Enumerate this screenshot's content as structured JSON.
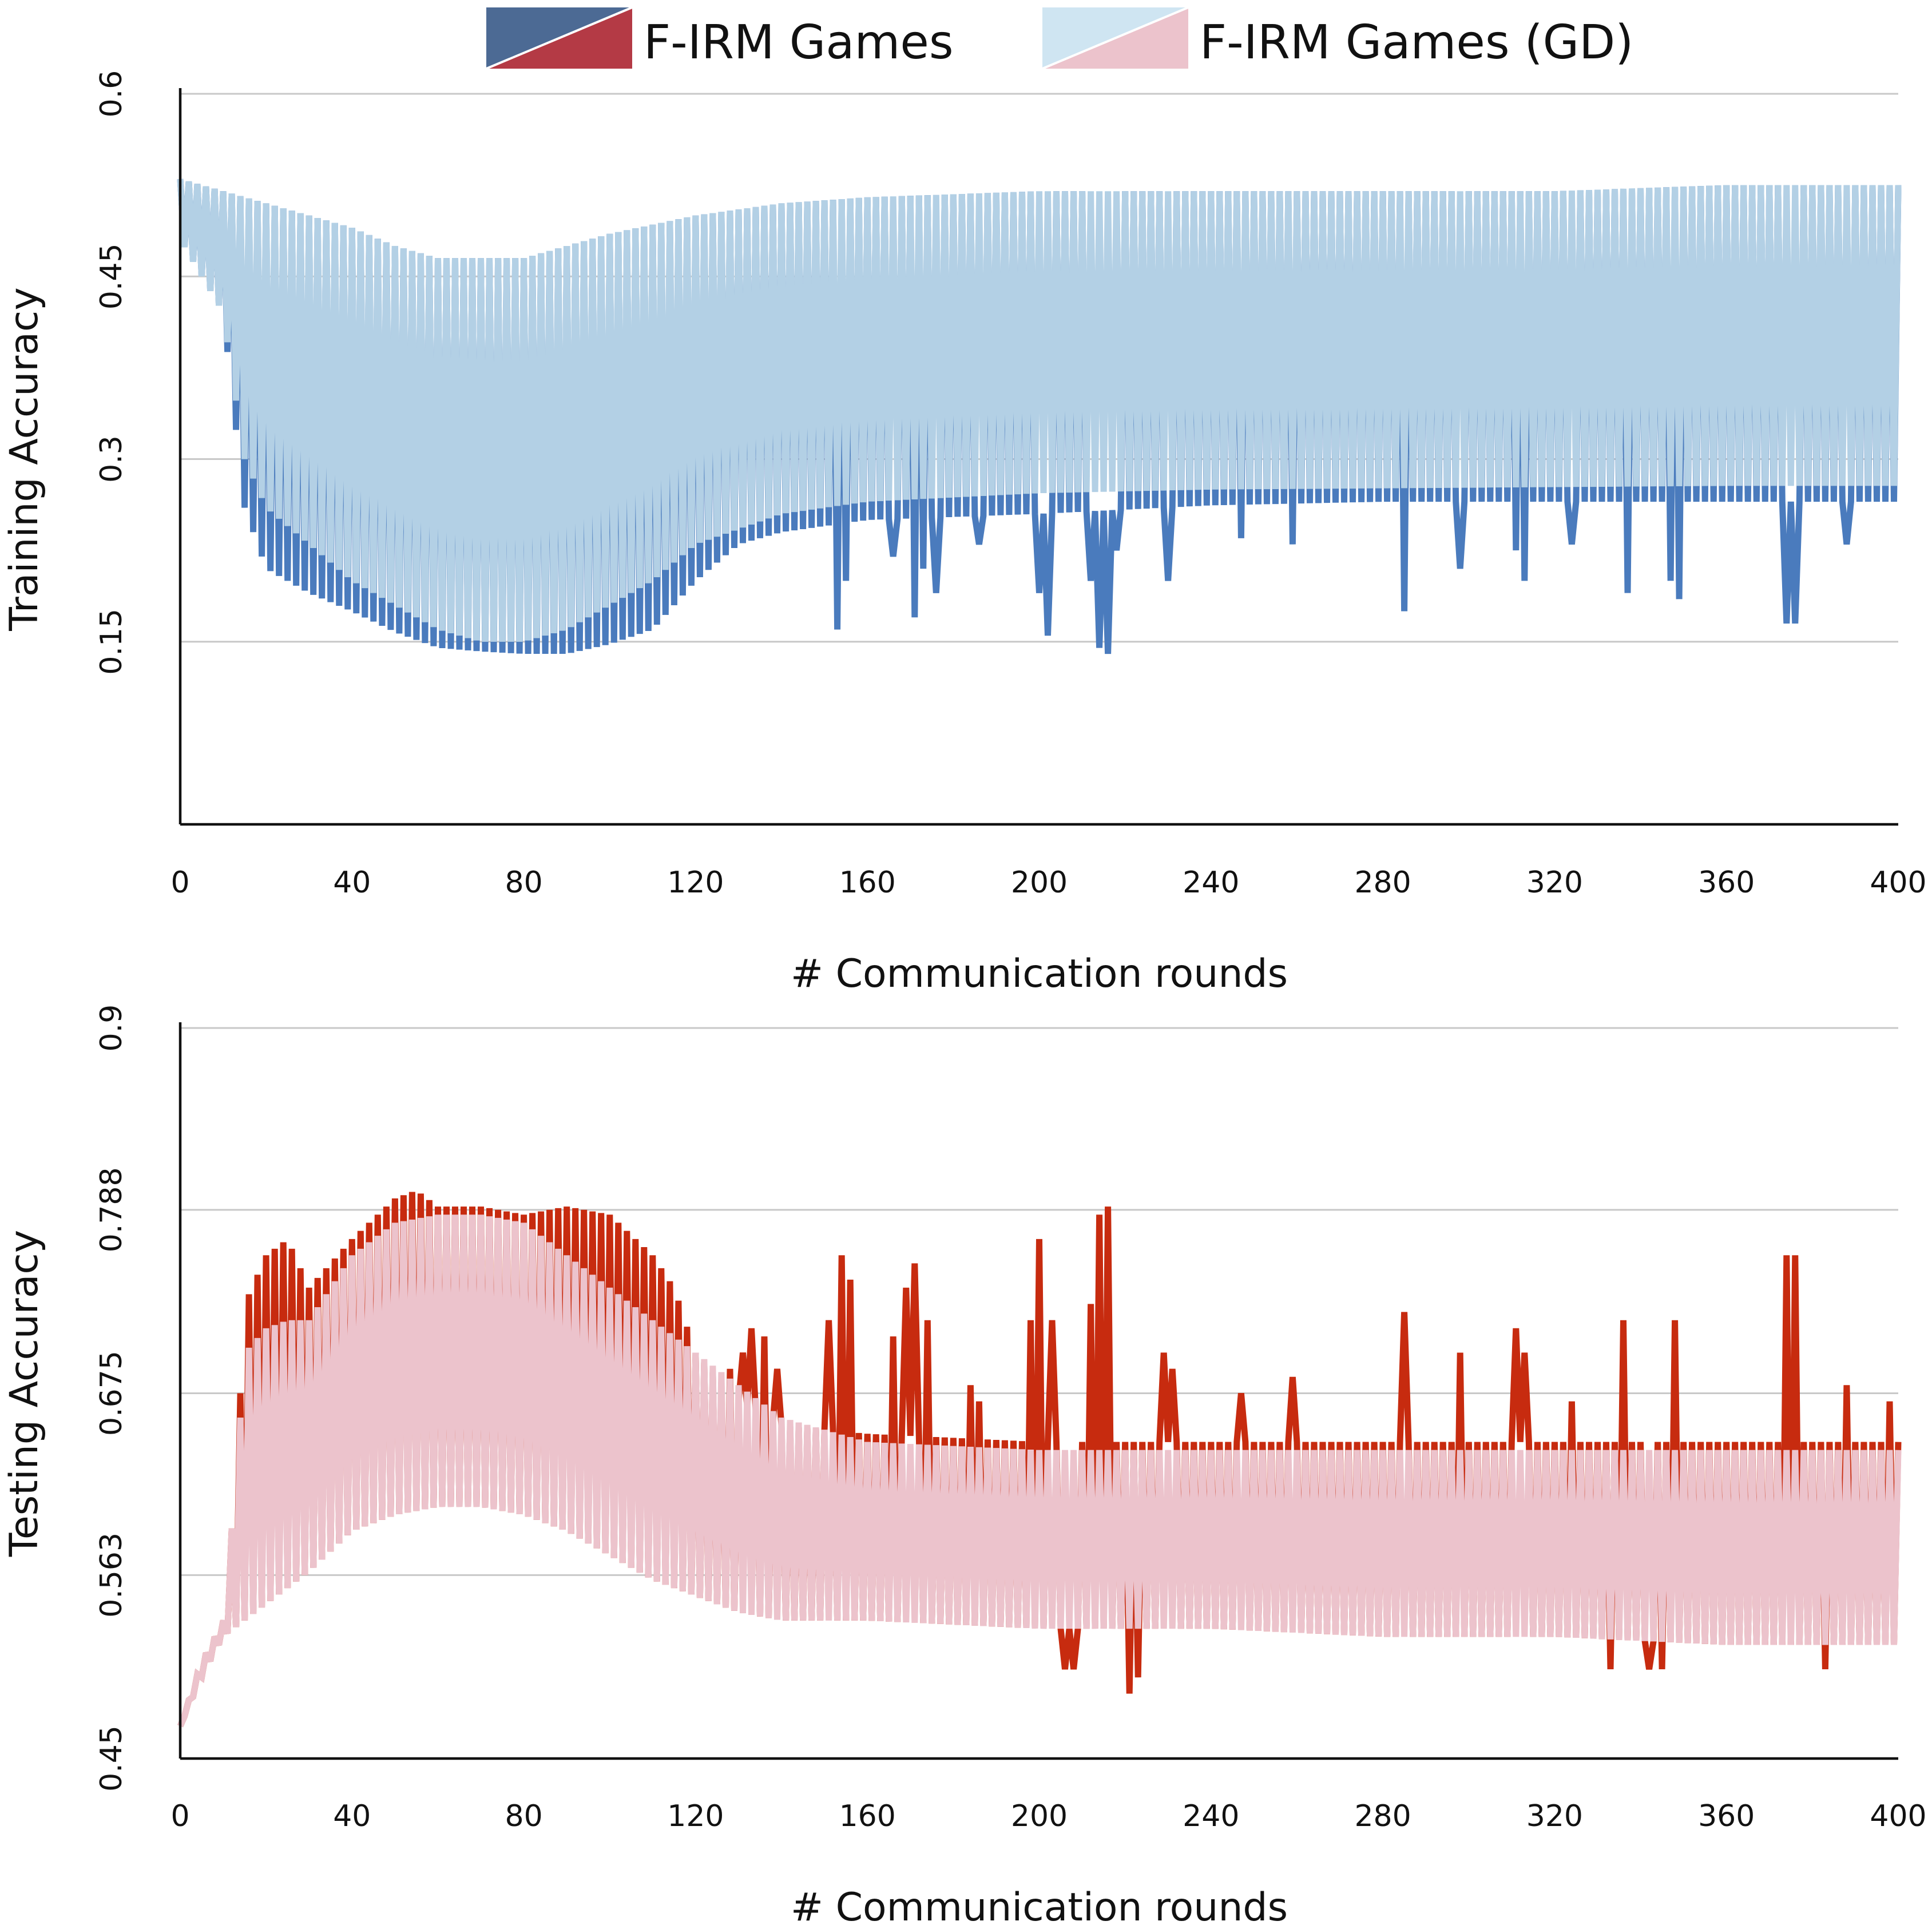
{
  "legend": {
    "items": [
      {
        "label": "F-IRM Games",
        "colors": [
          "#4c6a94",
          "#b43a45"
        ]
      },
      {
        "label": "F-IRM Games (GD)",
        "colors": [
          "#cfe5f2",
          "#ecc3cc"
        ]
      }
    ]
  },
  "colors": {
    "train_main": "#4a7bbd",
    "train_gd": "#b3d0e5",
    "test_main": "#c72b0f",
    "test_gd": "#ecc3cc",
    "grid": "#c8c8c8",
    "axis": "#111111"
  },
  "chart_data": [
    {
      "type": "line",
      "title": "",
      "xlabel": "# Communication rounds",
      "ylabel": "Training Accuracy",
      "xlim": [
        0,
        400
      ],
      "ylim": [
        0,
        0.6
      ],
      "xticks": [
        "0",
        "40",
        "80",
        "120",
        "160",
        "200",
        "240",
        "280",
        "320",
        "360",
        "400"
      ],
      "yticks": [
        "0.15",
        "0.3",
        "0.45",
        "0.6"
      ],
      "ytick_values": [
        0.15,
        0.3,
        0.45,
        0.6
      ],
      "grid": "horizontal",
      "series": [
        {
          "name": "F-IRM Games",
          "description_of_shape": "oscillates every round between an upper and lower envelope",
          "upper_envelope_x": [
            0,
            10,
            20,
            30,
            40,
            50,
            60,
            70,
            80,
            90,
            100,
            120,
            140,
            160,
            200,
            240,
            280,
            320,
            360,
            400
          ],
          "upper_envelope_y": [
            0.53,
            0.52,
            0.51,
            0.5,
            0.49,
            0.475,
            0.465,
            0.465,
            0.465,
            0.475,
            0.485,
            0.5,
            0.51,
            0.515,
            0.52,
            0.52,
            0.52,
            0.52,
            0.525,
            0.525
          ],
          "lower_envelope_x": [
            0,
            10,
            15,
            20,
            30,
            40,
            50,
            60,
            70,
            80,
            90,
            100,
            110,
            120,
            130,
            140,
            160,
            200,
            240,
            280,
            320,
            360,
            400
          ],
          "lower_envelope_y": [
            0.48,
            0.42,
            0.26,
            0.21,
            0.19,
            0.175,
            0.158,
            0.145,
            0.142,
            0.14,
            0.14,
            0.148,
            0.16,
            0.2,
            0.23,
            0.24,
            0.25,
            0.255,
            0.262,
            0.265,
            0.265,
            0.265,
            0.265
          ]
        },
        {
          "name": "F-IRM Games (GD)",
          "description_of_shape": "oscillates every round between an upper and lower envelope",
          "upper_envelope_x": [
            0,
            10,
            20,
            30,
            40,
            50,
            60,
            70,
            80,
            90,
            100,
            120,
            140,
            160,
            200,
            240,
            280,
            320,
            360,
            400
          ],
          "upper_envelope_y": [
            0.53,
            0.52,
            0.51,
            0.5,
            0.49,
            0.475,
            0.465,
            0.465,
            0.465,
            0.475,
            0.485,
            0.5,
            0.51,
            0.515,
            0.52,
            0.52,
            0.52,
            0.52,
            0.525,
            0.525
          ],
          "lower_envelope_x": [
            0,
            10,
            15,
            20,
            30,
            40,
            50,
            60,
            70,
            80,
            90,
            100,
            110,
            120,
            140,
            160,
            200,
            240,
            280,
            320,
            360,
            400
          ],
          "lower_envelope_y": [
            0.48,
            0.42,
            0.3,
            0.26,
            0.23,
            0.2,
            0.18,
            0.16,
            0.15,
            0.15,
            0.16,
            0.18,
            0.2,
            0.23,
            0.255,
            0.265,
            0.272,
            0.275,
            0.276,
            0.277,
            0.278,
            0.278
          ]
        }
      ],
      "dips": [
        {
          "x": 153,
          "y": 0.16
        },
        {
          "x": 155,
          "y": 0.2
        },
        {
          "x": 166,
          "y": 0.22
        },
        {
          "x": 171,
          "y": 0.17
        },
        {
          "x": 173,
          "y": 0.21
        },
        {
          "x": 176,
          "y": 0.19
        },
        {
          "x": 186,
          "y": 0.23
        },
        {
          "x": 200,
          "y": 0.19
        },
        {
          "x": 202,
          "y": 0.155
        },
        {
          "x": 212,
          "y": 0.2
        },
        {
          "x": 214,
          "y": 0.145
        },
        {
          "x": 216,
          "y": 0.14
        },
        {
          "x": 218,
          "y": 0.225
        },
        {
          "x": 230,
          "y": 0.2
        },
        {
          "x": 247,
          "y": 0.235
        },
        {
          "x": 259,
          "y": 0.23
        },
        {
          "x": 285,
          "y": 0.175
        },
        {
          "x": 298,
          "y": 0.21
        },
        {
          "x": 311,
          "y": 0.225
        },
        {
          "x": 313,
          "y": 0.2
        },
        {
          "x": 324,
          "y": 0.23
        },
        {
          "x": 337,
          "y": 0.19
        },
        {
          "x": 347,
          "y": 0.2
        },
        {
          "x": 349,
          "y": 0.185
        },
        {
          "x": 374,
          "y": 0.165
        },
        {
          "x": 376,
          "y": 0.165
        },
        {
          "x": 388,
          "y": 0.23
        }
      ]
    },
    {
      "type": "line",
      "title": "",
      "xlabel": "# Communication rounds",
      "ylabel": "Testing Accuracy",
      "xlim": [
        0,
        400
      ],
      "ylim": [
        0.45,
        0.9
      ],
      "xticks": [
        "0",
        "40",
        "80",
        "120",
        "160",
        "200",
        "240",
        "280",
        "320",
        "360",
        "400"
      ],
      "yticks": [
        "0.45",
        "0.563",
        "0.675",
        "0.788",
        "0.9"
      ],
      "ytick_values": [
        0.45,
        0.563,
        0.675,
        0.788,
        0.9
      ],
      "grid": "horizontal",
      "series": [
        {
          "name": "F-IRM Games",
          "upper_envelope_x": [
            0,
            5,
            10,
            13,
            15,
            20,
            25,
            30,
            40,
            50,
            55,
            60,
            70,
            80,
            90,
            100,
            110,
            115,
            120,
            130,
            140,
            160,
            200,
            240,
            280,
            320,
            360,
            400
          ],
          "upper_envelope_y": [
            0.47,
            0.51,
            0.535,
            0.62,
            0.73,
            0.76,
            0.77,
            0.74,
            0.77,
            0.795,
            0.8,
            0.79,
            0.79,
            0.785,
            0.79,
            0.785,
            0.76,
            0.74,
            0.7,
            0.67,
            0.655,
            0.65,
            0.645,
            0.645,
            0.645,
            0.645,
            0.645,
            0.645
          ],
          "lower_envelope_x": [
            0,
            5,
            10,
            15,
            20,
            30,
            40,
            50,
            60,
            70,
            80,
            90,
            100,
            110,
            120,
            130,
            140,
            160,
            200,
            240,
            280,
            320,
            360,
            400
          ],
          "lower_envelope_y": [
            0.47,
            0.5,
            0.525,
            0.535,
            0.545,
            0.565,
            0.59,
            0.6,
            0.605,
            0.605,
            0.6,
            0.59,
            0.575,
            0.56,
            0.55,
            0.54,
            0.535,
            0.535,
            0.53,
            0.53,
            0.525,
            0.525,
            0.52,
            0.52
          ]
        },
        {
          "name": "F-IRM Games (GD)",
          "upper_envelope_x": [
            0,
            5,
            10,
            13,
            15,
            20,
            25,
            30,
            40,
            50,
            60,
            70,
            80,
            90,
            100,
            110,
            120,
            130,
            140,
            160,
            200,
            240,
            280,
            320,
            360,
            400
          ],
          "upper_envelope_y": [
            0.47,
            0.51,
            0.535,
            0.62,
            0.7,
            0.715,
            0.72,
            0.72,
            0.76,
            0.78,
            0.785,
            0.785,
            0.78,
            0.76,
            0.74,
            0.72,
            0.7,
            0.68,
            0.66,
            0.645,
            0.64,
            0.64,
            0.64,
            0.64,
            0.64,
            0.64
          ],
          "lower_envelope_x": [
            0,
            5,
            10,
            15,
            20,
            30,
            40,
            50,
            60,
            70,
            80,
            90,
            100,
            110,
            120,
            130,
            140,
            160,
            200,
            240,
            280,
            320,
            360,
            400
          ],
          "lower_envelope_y": [
            0.47,
            0.5,
            0.525,
            0.535,
            0.545,
            0.565,
            0.59,
            0.6,
            0.605,
            0.605,
            0.6,
            0.59,
            0.575,
            0.56,
            0.55,
            0.54,
            0.535,
            0.535,
            0.53,
            0.53,
            0.525,
            0.525,
            0.52,
            0.52
          ]
        }
      ],
      "spikes": [
        {
          "x": 128,
          "y": 0.69
        },
        {
          "x": 131,
          "y": 0.7
        },
        {
          "x": 133,
          "y": 0.715
        },
        {
          "x": 136,
          "y": 0.71
        },
        {
          "x": 139,
          "y": 0.69
        },
        {
          "x": 151,
          "y": 0.72
        },
        {
          "x": 154,
          "y": 0.76
        },
        {
          "x": 156,
          "y": 0.745
        },
        {
          "x": 166,
          "y": 0.71
        },
        {
          "x": 169,
          "y": 0.74
        },
        {
          "x": 171,
          "y": 0.755
        },
        {
          "x": 174,
          "y": 0.72
        },
        {
          "x": 184,
          "y": 0.68
        },
        {
          "x": 186,
          "y": 0.67
        },
        {
          "x": 198,
          "y": 0.72
        },
        {
          "x": 200,
          "y": 0.77
        },
        {
          "x": 203,
          "y": 0.72
        },
        {
          "x": 212,
          "y": 0.73
        },
        {
          "x": 214,
          "y": 0.785
        },
        {
          "x": 216,
          "y": 0.79
        },
        {
          "x": 229,
          "y": 0.7
        },
        {
          "x": 231,
          "y": 0.69
        },
        {
          "x": 247,
          "y": 0.675
        },
        {
          "x": 259,
          "y": 0.685
        },
        {
          "x": 285,
          "y": 0.725
        },
        {
          "x": 298,
          "y": 0.7
        },
        {
          "x": 311,
          "y": 0.715
        },
        {
          "x": 313,
          "y": 0.7
        },
        {
          "x": 324,
          "y": 0.67
        },
        {
          "x": 336,
          "y": 0.72
        },
        {
          "x": 348,
          "y": 0.72
        },
        {
          "x": 374,
          "y": 0.76
        },
        {
          "x": 376,
          "y": 0.76
        },
        {
          "x": 388,
          "y": 0.68
        },
        {
          "x": 398,
          "y": 0.67
        }
      ],
      "dips": [
        {
          "x": 206,
          "y": 0.505
        },
        {
          "x": 208,
          "y": 0.505
        },
        {
          "x": 221,
          "y": 0.49
        },
        {
          "x": 223,
          "y": 0.5
        },
        {
          "x": 333,
          "y": 0.505
        },
        {
          "x": 342,
          "y": 0.505
        },
        {
          "x": 345,
          "y": 0.505
        },
        {
          "x": 383,
          "y": 0.505
        }
      ]
    }
  ]
}
